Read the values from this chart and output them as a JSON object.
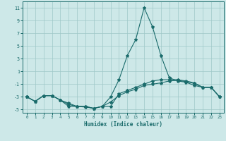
{
  "xlabel": "Humidex (Indice chaleur)",
  "bg_color": "#cde8e8",
  "grid_color": "#9fc8c8",
  "line_color": "#1a6b6b",
  "xlim": [
    -0.5,
    23.5
  ],
  "ylim": [
    -5.5,
    12
  ],
  "yticks": [
    -5,
    -3,
    -1,
    1,
    3,
    5,
    7,
    9,
    11
  ],
  "xticks": [
    0,
    1,
    2,
    3,
    4,
    5,
    6,
    7,
    8,
    9,
    10,
    11,
    12,
    13,
    14,
    15,
    16,
    17,
    18,
    19,
    20,
    21,
    22,
    23
  ],
  "curve1_x": [
    0,
    1,
    2,
    3,
    4,
    5,
    6,
    7,
    8,
    9,
    10,
    11,
    12,
    13,
    14,
    15,
    16,
    17,
    18,
    19,
    20,
    21,
    22,
    23
  ],
  "curve1_y": [
    -3,
    -3.7,
    -2.8,
    -2.8,
    -3.5,
    -4.0,
    -4.5,
    -4.6,
    -4.8,
    -4.5,
    -3.0,
    -0.3,
    3.5,
    6.0,
    11,
    8.0,
    3.5,
    0.0,
    -0.5,
    -0.7,
    -1.2,
    -1.5,
    -1.5,
    -3.0
  ],
  "curve2_x": [
    0,
    1,
    2,
    3,
    4,
    5,
    6,
    7,
    8,
    9,
    10,
    11,
    12,
    13,
    14,
    15,
    16,
    17,
    18,
    19,
    20,
    21,
    22,
    23
  ],
  "curve2_y": [
    -3,
    -3.7,
    -2.8,
    -2.8,
    -3.5,
    -4.5,
    -4.5,
    -4.5,
    -4.8,
    -4.5,
    -4.5,
    -2.5,
    -2.0,
    -1.5,
    -1.0,
    -0.5,
    -0.3,
    -0.3,
    -0.3,
    -0.5,
    -0.8,
    -1.5,
    -1.5,
    -3.0
  ],
  "curve3_x": [
    0,
    1,
    2,
    3,
    4,
    5,
    6,
    7,
    8,
    9,
    10,
    11,
    12,
    13,
    14,
    15,
    16,
    17,
    18,
    19,
    20,
    21,
    22,
    23
  ],
  "curve3_y": [
    -3,
    -3.7,
    -2.8,
    -2.8,
    -3.5,
    -4.2,
    -4.5,
    -4.5,
    -4.8,
    -4.5,
    -3.8,
    -2.8,
    -2.2,
    -1.8,
    -1.2,
    -1.0,
    -0.8,
    -0.5,
    -0.4,
    -0.6,
    -0.9,
    -1.5,
    -1.5,
    -3.0
  ]
}
